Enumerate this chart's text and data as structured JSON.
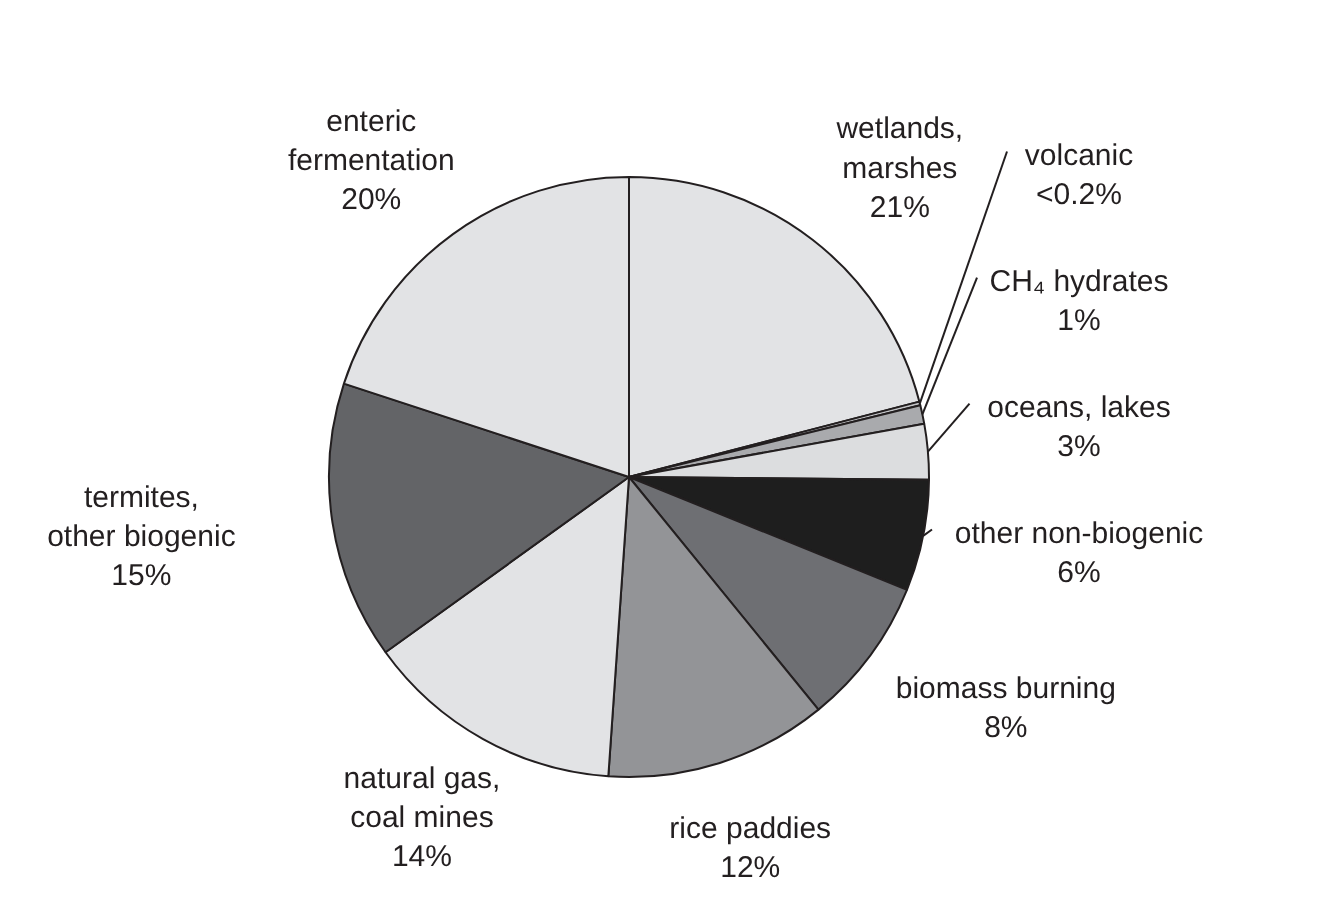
{
  "chart_data": {
    "type": "pie",
    "categories": [
      "wetlands,\nmarshes",
      "volcanic",
      "CH₄ hydrates",
      "oceans, lakes",
      "other non-biogenic",
      "biomass burning",
      "rice paddies",
      "natural gas,\ncoal mines",
      "termites,\nother biogenic",
      "enteric\nfermentation"
    ],
    "values": [
      21,
      0.2,
      1,
      3,
      6,
      8,
      12,
      14,
      15,
      20
    ],
    "value_labels": [
      "21%",
      "<0.2%",
      "1%",
      "3%",
      "6%",
      "8%",
      "12%",
      "14%",
      "15%",
      "20%"
    ],
    "colors": [
      "#e2e3e5",
      "#c4c5c8",
      "#a9aaad",
      "#dcdddf",
      "#1e1e1e",
      "#6e6f73",
      "#939497",
      "#e2e3e5",
      "#636467",
      "#e2e3e5"
    ]
  }
}
